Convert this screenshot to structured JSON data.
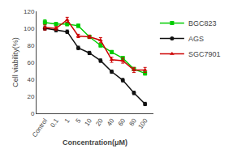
{
  "chart_data": {
    "type": "line",
    "xlabel": "Concentration(μM)",
    "ylabel": "Cell viability(%)",
    "categories": [
      "Control",
      "0.1",
      "1",
      "5",
      "10",
      "20",
      "40",
      "60",
      "80",
      "100"
    ],
    "series": [
      {
        "name": "BGC823",
        "color": "#00cc00",
        "marker": "square",
        "values": [
          107,
          105,
          105,
          103,
          90,
          80,
          72,
          65,
          52,
          47
        ],
        "errors": [
          3,
          2,
          2,
          2,
          2,
          2,
          2,
          2,
          2,
          2
        ]
      },
      {
        "name": "AGS",
        "color": "#111111",
        "marker": "circle",
        "values": [
          100,
          98,
          96,
          77,
          71,
          62,
          49,
          39,
          24,
          11
        ],
        "errors": [
          2,
          2,
          2,
          2,
          2,
          2,
          2,
          2,
          2,
          2
        ]
      },
      {
        "name": "SGC7901",
        "color": "#cc0000",
        "marker": "triangle-up",
        "values": [
          101,
          100,
          110,
          91,
          90,
          86,
          63,
          62,
          51,
          51
        ],
        "errors": [
          3,
          2,
          3,
          2,
          2,
          3,
          3,
          3,
          3,
          3
        ]
      }
    ],
    "ylim": [
      0,
      120
    ],
    "yticks": [
      0,
      20,
      40,
      60,
      80,
      100,
      120
    ],
    "grid": false,
    "legend": "upper right"
  }
}
